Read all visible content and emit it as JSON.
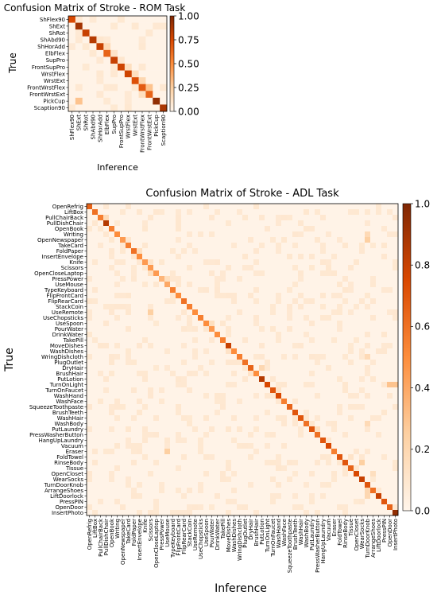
{
  "chart_data": [
    {
      "type": "heatmap",
      "title": "Confusion Matrix of Stroke - ROM Task",
      "xlabel": "Inference",
      "ylabel": "True",
      "labels": [
        "ShFlex90",
        "ShExt",
        "ShRot",
        "ShAbd90",
        "ShHorAdd",
        "ElbFlex",
        "SupPro",
        "FrontSupPro",
        "WrstFlex",
        "WrstExt",
        "FrontWrstFlex",
        "FrontWrstExt",
        "PickCup",
        "Scaption90"
      ],
      "diagonal": [
        0.75,
        0.9,
        0.8,
        0.85,
        0.8,
        0.65,
        0.8,
        0.78,
        0.78,
        0.72,
        0.68,
        0.65,
        0.95,
        0.88
      ],
      "offdiag": [
        [
          12,
          1,
          0.3
        ],
        [
          10,
          11,
          0.3
        ],
        [
          4,
          5,
          0.18
        ],
        [
          5,
          6,
          0.12
        ],
        [
          7,
          8,
          0.15
        ],
        [
          9,
          10,
          0.2
        ],
        [
          3,
          4,
          0.1
        ],
        [
          8,
          9,
          0.15
        ],
        [
          11,
          10,
          0.15
        ],
        [
          0,
          1,
          0.08
        ],
        [
          6,
          7,
          0.1
        ],
        [
          2,
          1,
          0.08
        ]
      ],
      "colorbar": {
        "min": 0.0,
        "max": 1.0,
        "ticks": [
          "0.00",
          "0.25",
          "0.50",
          "0.75",
          "1.00"
        ]
      },
      "colormap": [
        "#fff5eb",
        "#fdd0a2",
        "#fd8d3c",
        "#d94801",
        "#7f2704"
      ]
    },
    {
      "type": "heatmap",
      "title": "Confusion Matrix of Stroke - ADL Task",
      "xlabel": "Inference",
      "ylabel": "True",
      "labels": [
        "OpenRefrig",
        "LiftBox",
        "PullChairBack",
        "PullDishChair",
        "OpenBook",
        "Writing",
        "OpenNewspaper",
        "TakeCard",
        "FoldPaper",
        "InsertEnvelope",
        "Knife",
        "Scissors",
        "OpenCloseLaptop",
        "PressPower",
        "UseMouse",
        "TypeKeyboard",
        "FlipFrontCard",
        "FlipRearCard",
        "StackCoin",
        "UseRemote",
        "UseChopsticks",
        "UseSpoon",
        "PourWater",
        "DrinkWater",
        "TakePill",
        "MoveDishes",
        "WashDishes",
        "WringDishcloth",
        "PlugOutlet",
        "DryHair",
        "BrushHair",
        "PutLotion",
        "TurnOnLight",
        "TurnOnFaucet",
        "WashHand",
        "WashFace",
        "SqueezeToothpaste",
        "BrushTeeth",
        "WashHair",
        "WashBody",
        "PutLaundry",
        "PressWasherButton",
        "HangUpLaundry",
        "Vacuum",
        "Eraser",
        "FoldTowel",
        "RinseBody",
        "Tissue",
        "OpenCloset",
        "WearSocks",
        "TurnDoorKnob",
        "ArrangeShoes",
        "LiftDoorlock",
        "PressPIN",
        "OpenDoor",
        "InsertPhoto"
      ],
      "diagonal": [
        0.65,
        0.6,
        0.55,
        0.85,
        0.55,
        0.5,
        0.45,
        0.55,
        0.6,
        0.5,
        0.45,
        0.45,
        0.45,
        0.35,
        0.4,
        0.55,
        0.5,
        0.6,
        0.55,
        0.5,
        0.55,
        0.5,
        0.45,
        0.5,
        0.55,
        0.8,
        0.5,
        0.55,
        0.6,
        0.65,
        0.5,
        0.85,
        0.75,
        0.7,
        0.75,
        0.55,
        0.65,
        0.7,
        0.7,
        0.6,
        0.7,
        0.6,
        0.7,
        0.75,
        0.55,
        0.7,
        0.7,
        0.65,
        0.75,
        0.8,
        0.7,
        0.6,
        0.8,
        0.7,
        0.65,
        0.95
      ],
      "offdiag": [
        [
          19,
          11,
          0.25
        ],
        [
          44,
          14,
          0.25
        ],
        [
          32,
          54,
          0.3
        ],
        [
          32,
          55,
          0.3
        ],
        [
          46,
          49,
          0.25
        ],
        [
          6,
          50,
          0.25
        ],
        [
          5,
          50,
          0.18
        ],
        [
          27,
          50,
          0.18
        ],
        [
          39,
          50,
          0.18
        ],
        [
          52,
          50,
          0.2
        ],
        [
          51,
          50,
          0.2
        ],
        [
          29,
          31,
          0.2
        ],
        [
          12,
          11,
          0.15
        ],
        [
          8,
          9,
          0.15
        ],
        [
          13,
          14,
          0.15
        ],
        [
          2,
          3,
          0.18
        ],
        [
          21,
          22,
          0.15
        ],
        [
          40,
          41,
          0.15
        ],
        [
          6,
          7,
          0.1
        ],
        [
          48,
          51,
          0.15
        ],
        [
          33,
          34,
          0.12
        ],
        [
          26,
          25,
          0.12
        ],
        [
          10,
          11,
          0.12
        ],
        [
          45,
          47,
          0.12
        ],
        [
          30,
          29,
          0.12
        ],
        [
          9,
          8,
          0.1
        ],
        [
          39,
          40,
          0.1
        ]
      ],
      "colorbar": {
        "min": 0.0,
        "max": 1.0,
        "ticks": [
          "0.0",
          "0.2",
          "0.4",
          "0.6",
          "0.8",
          "1.0"
        ]
      },
      "colormap": [
        "#fff5eb",
        "#fdd0a2",
        "#fd8d3c",
        "#d94801",
        "#7f2704"
      ]
    }
  ]
}
